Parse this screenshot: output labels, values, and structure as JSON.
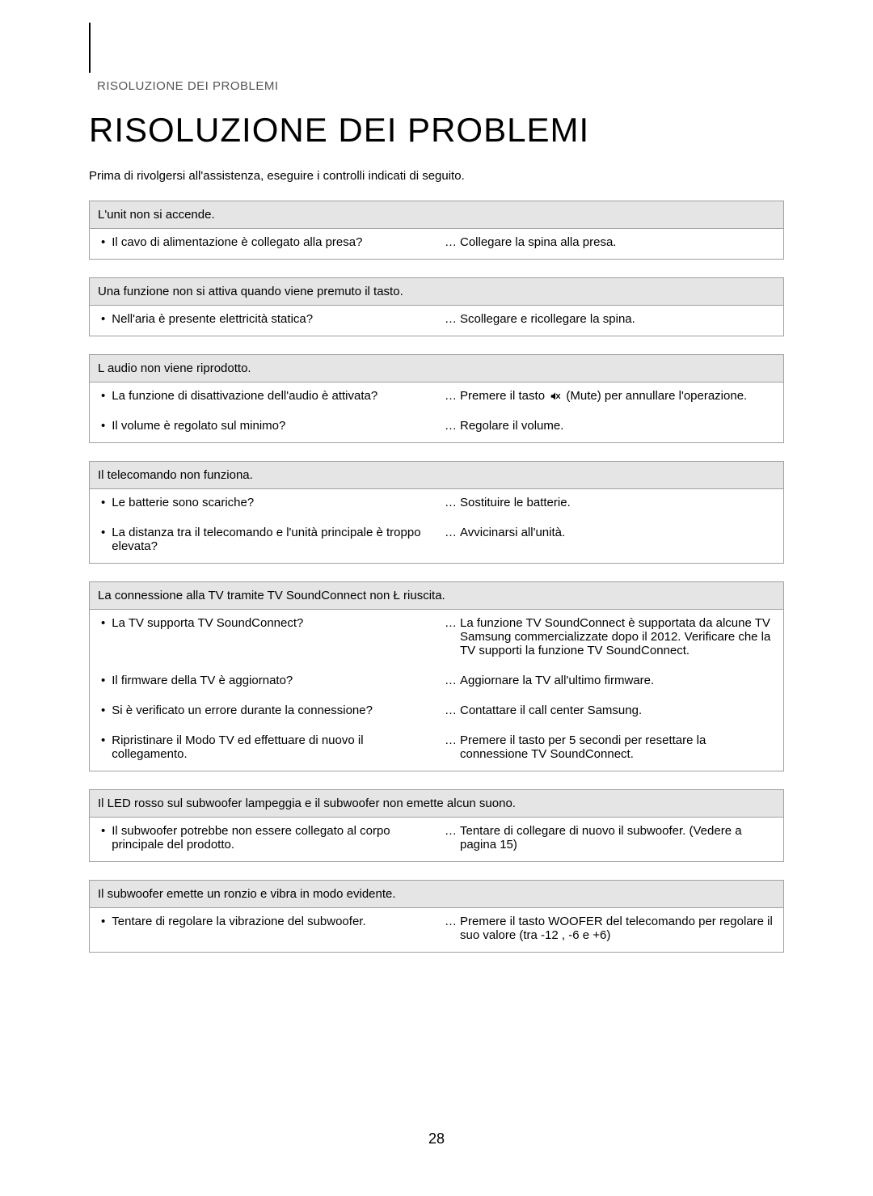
{
  "breadcrumb": "RISOLUZIONE DEI PROBLEMI",
  "title": "RISOLUZIONE DEI PROBLEMI",
  "intro": "Prima di rivolgersi all'assistenza, eseguire i controlli indicati di seguito.",
  "page_number": "28",
  "ellipsis": "…",
  "bullet_char": "•",
  "colors": {
    "page_bg": "#ffffff",
    "border": "#a0a0a0",
    "thead_bg": "#e5e5e5",
    "text": "#000000",
    "breadcrumb": "#555555"
  },
  "sections": [
    {
      "header": "L'unit  non si accende.",
      "rows": [
        {
          "q": "Il cavo di alimentazione è collegato alla presa?",
          "a": "Collegare la spina alla presa."
        }
      ]
    },
    {
      "header": "Una funzione non si attiva quando viene premuto il tasto.",
      "rows": [
        {
          "q": "Nell'aria è presente elettricità statica?",
          "a": "Scollegare e ricollegare la spina."
        }
      ]
    },
    {
      "header": "L audio non viene riprodotto.",
      "rows": [
        {
          "q": "La funzione di disattivazione dell'audio è attivata?",
          "a_pre": "Premere il tasto ",
          "icon": "mute",
          "a_post": " (Mute) per annullare l'operazione."
        },
        {
          "q": "Il volume è regolato sul minimo?",
          "a": "Regolare il volume."
        }
      ]
    },
    {
      "header": "Il telecomando non funziona.",
      "rows": [
        {
          "q": "Le batterie sono scariche?",
          "a": "Sostituire le batterie."
        },
        {
          "q": "La distanza tra il telecomando e l'unità principale è troppo elevata?",
          "a": "Avvicinarsi all'unità."
        }
      ]
    },
    {
      "header": "La connessione alla TV tramite TV SoundConnect non Ł riuscita.",
      "rows": [
        {
          "q": "La TV supporta TV SoundConnect?",
          "a": "La funzione TV SoundConnect è supportata da alcune TV Samsung commercializzate dopo il 2012. Verificare che la TV supporti la funzione TV SoundConnect."
        },
        {
          "q": "Il firmware della TV è aggiornato?",
          "a": "Aggiornare la TV all'ultimo firmware."
        },
        {
          "q": "Si è verificato un errore durante la connessione?",
          "a": "Contattare il call center Samsung."
        },
        {
          "q": "Ripristinare il Modo TV ed effettuare di nuovo il collegamento.",
          "a": "Premere il tasto      per 5 secondi per resettare la connessione TV SoundConnect."
        }
      ]
    },
    {
      "header": "Il LED rosso sul subwoofer lampeggia e il subwoofer non emette alcun suono.",
      "rows": [
        {
          "q": "Il subwoofer potrebbe non essere collegato al corpo principale del prodotto.",
          "a": "Tentare di collegare di nuovo il subwoofer. (Vedere a pagina 15)"
        }
      ]
    },
    {
      "header": "Il subwoofer emette un ronzio e vibra in modo evidente.",
      "rows": [
        {
          "q": "Tentare di regolare la vibrazione del subwoofer.",
          "a": "Premere il tasto WOOFER del telecomando per regolare il suo valore (tra -12 , -6 e +6)"
        }
      ]
    }
  ]
}
